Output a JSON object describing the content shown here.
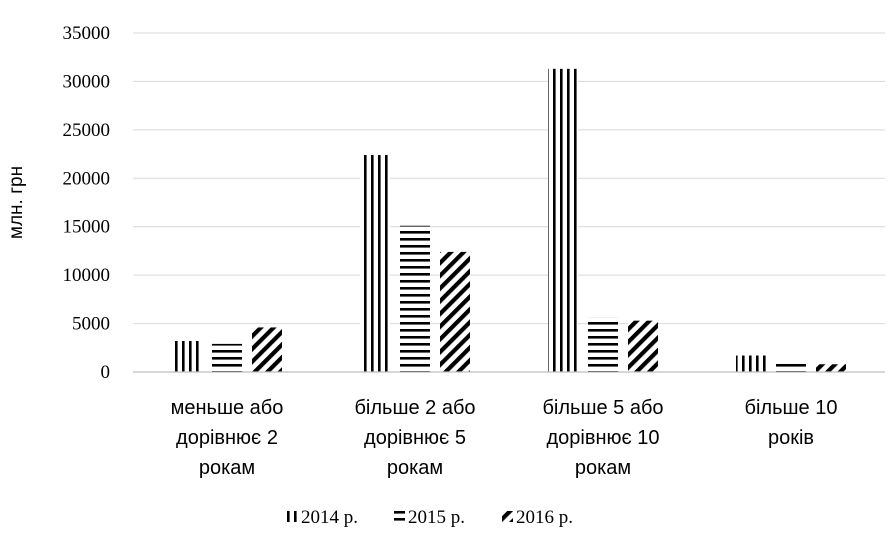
{
  "chart_data": {
    "type": "bar",
    "ylabel": "млн. грн",
    "xlabel": "",
    "ylim": [
      0,
      35000
    ],
    "yticks": [
      0,
      5000,
      10000,
      15000,
      20000,
      25000,
      30000,
      35000
    ],
    "grid": true,
    "legend_position": "bottom",
    "categories": [
      [
        "меньше або",
        "дорівнює 2",
        "рокам"
      ],
      [
        "більше 2 або",
        "дорівнює 5",
        "рокам"
      ],
      [
        "більше 5 або",
        "дорівнює 10",
        "рокам"
      ],
      [
        "більше 10",
        "років"
      ]
    ],
    "series": [
      {
        "name": "2014 р.",
        "pattern": "vertical",
        "values": [
          3200,
          22400,
          31300,
          1700
        ]
      },
      {
        "name": "2015 р.",
        "pattern": "horizontal",
        "values": [
          2900,
          15100,
          5600,
          1200
        ]
      },
      {
        "name": "2016 р.",
        "pattern": "diagonal",
        "values": [
          4600,
          12400,
          5300,
          800
        ]
      }
    ],
    "colors": {
      "ink": "#000000",
      "grid": "#d9d9d9",
      "axis": "#bfbfbf"
    }
  }
}
